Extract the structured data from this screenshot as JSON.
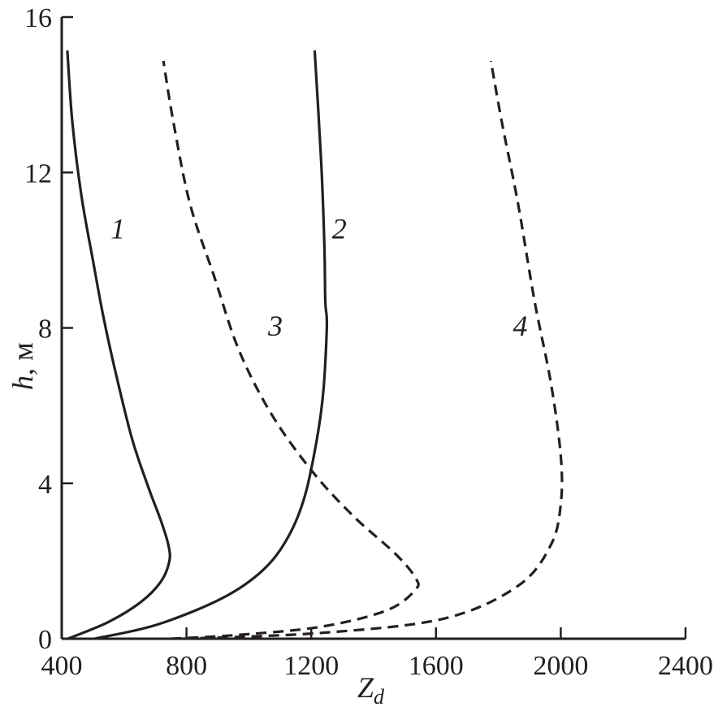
{
  "chart_data": {
    "type": "line",
    "title": "",
    "xlabel": "Z",
    "xlabel_sub": "d",
    "ylabel": "h",
    "ylabel_unit": ", м",
    "xlim": [
      400,
      2400
    ],
    "ylim": [
      0,
      16
    ],
    "xticks": [
      "400",
      "800",
      "1200",
      "1600",
      "2000",
      "2400"
    ],
    "yticks": [
      "0",
      "4",
      "8",
      "12",
      "16"
    ],
    "grid": false,
    "colors": {
      "line": "#231f20"
    },
    "series": [
      {
        "name": "1",
        "style": "solid",
        "label_at": [
          580,
          10.3
        ],
        "points": [
          [
            420,
            0
          ],
          [
            547,
            0.42
          ],
          [
            653,
            0.94
          ],
          [
            718,
            1.47
          ],
          [
            745,
            1.99
          ],
          [
            742,
            2.41
          ],
          [
            718,
            3.04
          ],
          [
            679,
            3.87
          ],
          [
            626,
            5.13
          ],
          [
            574,
            6.81
          ],
          [
            534,
            8.27
          ],
          [
            500,
            9.74
          ],
          [
            463,
            11.41
          ],
          [
            434,
            13.3
          ],
          [
            418,
            15.14
          ]
        ]
      },
      {
        "name": "2",
        "style": "solid",
        "label_at": [
          1290,
          10.3
        ],
        "points": [
          [
            505,
            0
          ],
          [
            705,
            0.36
          ],
          [
            916,
            1.05
          ],
          [
            1047,
            1.78
          ],
          [
            1126,
            2.62
          ],
          [
            1179,
            3.66
          ],
          [
            1218,
            5.13
          ],
          [
            1239,
            6.39
          ],
          [
            1250,
            8.06
          ],
          [
            1245,
            8.69
          ],
          [
            1242,
            10.16
          ],
          [
            1232,
            12.25
          ],
          [
            1211,
            15.14
          ]
        ]
      },
      {
        "name": "3",
        "style": "dashed",
        "label_at": [
          1085,
          7.8
        ],
        "points": [
          [
            750,
            0
          ],
          [
            968,
            0.1
          ],
          [
            1232,
            0.31
          ],
          [
            1442,
            0.73
          ],
          [
            1534,
            1.26
          ],
          [
            1534,
            1.57
          ],
          [
            1468,
            2.2
          ],
          [
            1337,
            3.14
          ],
          [
            1205,
            4.29
          ],
          [
            1074,
            5.76
          ],
          [
            968,
            7.43
          ],
          [
            889,
            9.32
          ],
          [
            811,
            11.2
          ],
          [
            758,
            13.3
          ],
          [
            726,
            14.87
          ]
        ]
      },
      {
        "name": "4",
        "style": "dashed",
        "label_at": [
          1870,
          7.8
        ],
        "points": [
          [
            790,
            0
          ],
          [
            1232,
            0.15
          ],
          [
            1626,
            0.52
          ],
          [
            1863,
            1.36
          ],
          [
            1968,
            2.41
          ],
          [
            2000,
            3.46
          ],
          [
            2000,
            4.71
          ],
          [
            1968,
            6.6
          ],
          [
            1916,
            8.69
          ],
          [
            1863,
            11.2
          ],
          [
            1811,
            13.3
          ],
          [
            1776,
            14.87
          ]
        ]
      }
    ]
  }
}
